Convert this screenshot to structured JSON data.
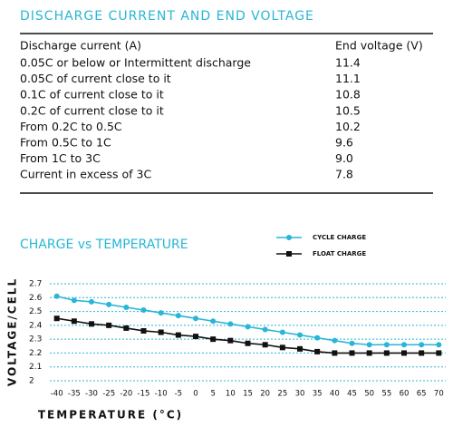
{
  "table": {
    "title": "DISCHARGE CURRENT AND END VOLTAGE",
    "header": [
      "Discharge current (A)",
      "End voltage (V)"
    ],
    "rows": [
      [
        "0.05C or below or Intermittent discharge",
        "11.4"
      ],
      [
        "0.05C of current close to it",
        "11.1"
      ],
      [
        "0.1C of current close to it",
        "10.8"
      ],
      [
        "0.2C of current close to it",
        "10.5"
      ],
      [
        "From 0.2C to 0.5C",
        "10.2"
      ],
      [
        "From 0.5C to 1C",
        "9.6"
      ],
      [
        "From 1C to 3C",
        "9.0"
      ],
      [
        "Current in excess of 3C",
        "7.8"
      ]
    ]
  },
  "chart_data": {
    "type": "line",
    "title": "CHARGE vs TEMPERATURE",
    "x_label": "TEMPERATURE (°C)",
    "y_label": "VOLTAGE/CELL",
    "x": [
      -40,
      -35,
      -30,
      -25,
      -20,
      -15,
      -10,
      -5,
      0,
      5,
      10,
      15,
      20,
      25,
      30,
      35,
      40,
      45,
      50,
      55,
      60,
      65,
      70
    ],
    "series": [
      {
        "name": "CYCLE CHARGE",
        "color": "#29b6d6",
        "marker": "circle",
        "values": [
          2.61,
          2.58,
          2.57,
          2.55,
          2.53,
          2.51,
          2.49,
          2.47,
          2.45,
          2.43,
          2.41,
          2.39,
          2.37,
          2.35,
          2.33,
          2.31,
          2.29,
          2.27,
          2.26,
          2.26,
          2.26,
          2.26,
          2.26
        ]
      },
      {
        "name": "FLOAT CHARGE",
        "color": "#111111",
        "marker": "square",
        "values": [
          2.45,
          2.43,
          2.41,
          2.4,
          2.38,
          2.36,
          2.35,
          2.33,
          2.32,
          2.3,
          2.29,
          2.27,
          2.26,
          2.24,
          2.23,
          2.21,
          2.2,
          2.2,
          2.2,
          2.2,
          2.2,
          2.2,
          2.2
        ]
      }
    ],
    "xlim": [
      -42,
      72
    ],
    "xticks": [
      -40,
      -35,
      -30,
      -25,
      -20,
      -15,
      -10,
      -5,
      0,
      5,
      10,
      15,
      20,
      25,
      30,
      35,
      40,
      45,
      50,
      55,
      60,
      65,
      70
    ],
    "ylim": [
      2,
      2.7
    ],
    "yticks": [
      2,
      2.1,
      2.2,
      2.3,
      2.4,
      2.5,
      2.6,
      2.7
    ],
    "grid": true
  }
}
